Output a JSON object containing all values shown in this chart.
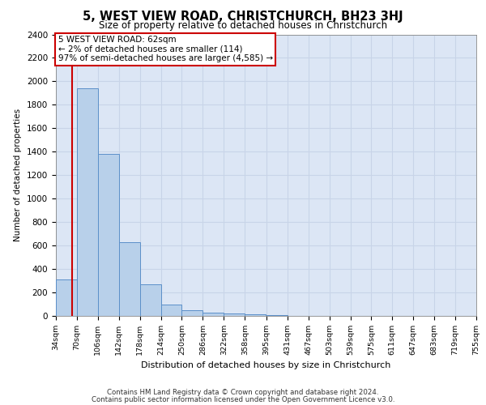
{
  "title": "5, WEST VIEW ROAD, CHRISTCHURCH, BH23 3HJ",
  "subtitle": "Size of property relative to detached houses in Christchurch",
  "xlabel": "Distribution of detached houses by size in Christchurch",
  "ylabel": "Number of detached properties",
  "footer_line1": "Contains HM Land Registry data © Crown copyright and database right 2024.",
  "footer_line2": "Contains public sector information licensed under the Open Government Licence v3.0.",
  "annotation_line1": "5 WEST VIEW ROAD: 62sqm",
  "annotation_line2": "← 2% of detached houses are smaller (114)",
  "annotation_line3": "97% of semi-detached houses are larger (4,585) →",
  "property_size": 62,
  "bar_left_edges": [
    34,
    70,
    106,
    142,
    178,
    214,
    250,
    286,
    322,
    358,
    395,
    431,
    467,
    503,
    539,
    575,
    611,
    647,
    683,
    719
  ],
  "bar_heights": [
    310,
    1940,
    1380,
    630,
    270,
    100,
    50,
    30,
    20,
    15,
    5,
    3,
    2,
    1,
    1,
    0,
    0,
    0,
    0,
    0
  ],
  "bin_width": 36,
  "bar_color": "#b8d0ea",
  "bar_edge_color": "#5b8fc9",
  "grid_color": "#c8d4e8",
  "background_color": "#dce6f5",
  "vline_color": "#cc0000",
  "annotation_box_color": "#cc0000",
  "ylim": [
    0,
    2400
  ],
  "yticks": [
    0,
    200,
    400,
    600,
    800,
    1000,
    1200,
    1400,
    1600,
    1800,
    2000,
    2200,
    2400
  ],
  "xtick_labels": [
    "34sqm",
    "70sqm",
    "106sqm",
    "142sqm",
    "178sqm",
    "214sqm",
    "250sqm",
    "286sqm",
    "322sqm",
    "358sqm",
    "395sqm",
    "431sqm",
    "467sqm",
    "503sqm",
    "539sqm",
    "575sqm",
    "611sqm",
    "647sqm",
    "683sqm",
    "719sqm",
    "755sqm"
  ]
}
